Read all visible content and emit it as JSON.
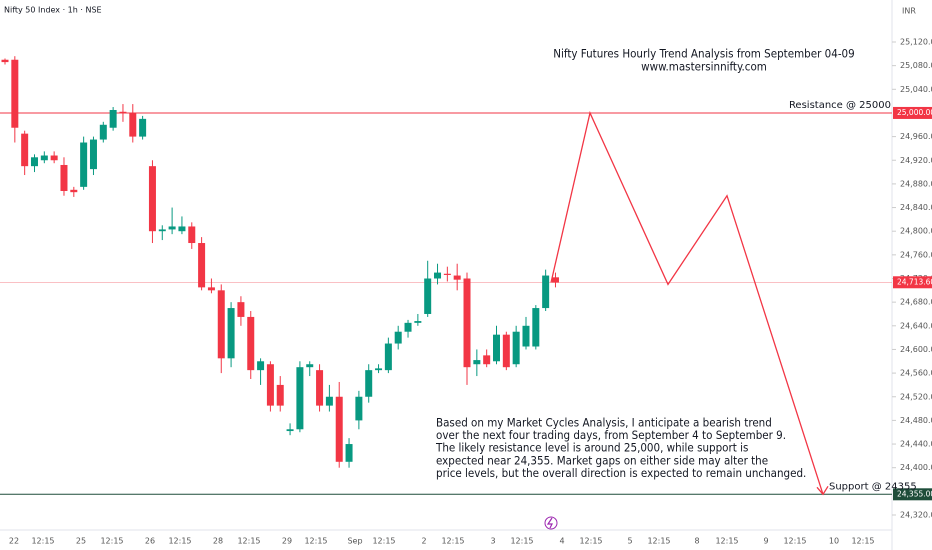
{
  "chart_data": {
    "type": "candlestick",
    "header": "Nifty 50 Index · 1h · NSE",
    "currency": "INR",
    "title": [
      "Nifty Futures Hourly Trend Analysis from September 04-09",
      "www.mastersinnifty.com"
    ],
    "annotation": [
      "Based on my Market Cycles Analysis, I anticipate a bearish trend",
      "over the next four trading days, from September 4 to September 9.",
      "The likely resistance level is around 25,000, while support is",
      "expected near 24,355. Market gaps on either side may alter the",
      "price levels, but the overall direction is expected to remain unchanged."
    ],
    "up_color": "#089981",
    "down_color": "#f23645",
    "open": [
      25090,
      25090,
      24965,
      24910,
      24920,
      24928,
      24912,
      24870,
      24875,
      24905,
      24955,
      24975,
      25002,
      25000,
      24960,
      24910,
      24800,
      24803,
      24800,
      24808,
      24780,
      24705,
      24700,
      24585,
      24680,
      24655,
      24565,
      24575,
      24540,
      24462,
      24465,
      24570,
      24565,
      24505,
      24520,
      24410,
      24480,
      24520,
      24565,
      24565,
      24610,
      24630,
      24645,
      24660,
      24720,
      24728,
      24725,
      24720,
      24575,
      24590,
      24580,
      24625,
      24575,
      24605,
      24605,
      24670,
      24722
    ],
    "high": [
      25092,
      25096,
      24970,
      24930,
      24935,
      24935,
      24925,
      24875,
      24960,
      24960,
      24985,
      25010,
      25015,
      25015,
      24995,
      24920,
      24810,
      24840,
      24825,
      24815,
      24790,
      24720,
      24710,
      24680,
      24690,
      24665,
      24585,
      24580,
      24555,
      24475,
      24580,
      24580,
      24575,
      24540,
      24545,
      24450,
      24530,
      24575,
      24575,
      24620,
      24640,
      24650,
      24660,
      24750,
      24745,
      24740,
      24745,
      24730,
      24600,
      24600,
      24640,
      24630,
      24640,
      24655,
      24675,
      24735,
      24730
    ],
    "low": [
      25082,
      24950,
      24895,
      24900,
      24915,
      24915,
      24860,
      24858,
      24870,
      24895,
      24950,
      24970,
      24985,
      24950,
      24955,
      24780,
      24785,
      24795,
      24795,
      24770,
      24700,
      24695,
      24560,
      24570,
      24640,
      24550,
      24540,
      24495,
      24495,
      24455,
      24460,
      24555,
      24495,
      24495,
      24400,
      24400,
      24465,
      24510,
      24560,
      24560,
      24600,
      24620,
      24640,
      24655,
      24710,
      24715,
      24700,
      24540,
      24555,
      24570,
      24575,
      24565,
      24570,
      24600,
      24600,
      24665,
      24705
    ],
    "close": [
      25086,
      24975,
      24910,
      24925,
      24928,
      24920,
      24868,
      24866,
      24950,
      24955,
      24980,
      25005,
      25000,
      24960,
      24990,
      24800,
      24803,
      24808,
      24808,
      24780,
      24705,
      24700,
      24585,
      24670,
      24655,
      24565,
      24580,
      24505,
      24505,
      24465,
      24570,
      24575,
      24505,
      24520,
      24410,
      24440,
      24520,
      24565,
      24568,
      24610,
      24630,
      24645,
      24648,
      24720,
      24730,
      24726,
      24718,
      24570,
      24582,
      24575,
      24625,
      24570,
      24630,
      24640,
      24670,
      24725,
      24713
    ],
    "x_labels": [
      "22",
      "12:15",
      "25",
      "12:15",
      "26",
      "12:15",
      "28",
      "12:15",
      "29",
      "12:15",
      "Sep",
      "12:15",
      "2",
      "12:15",
      "3",
      "12:15",
      "4",
      "12:15",
      "5",
      "12:15",
      "8",
      "12:15",
      "9",
      "12:15",
      "10",
      "12:15"
    ],
    "ylim": [
      24320,
      25120
    ],
    "yticks": [
      {
        "value": 25120,
        "label": "25,120.00"
      },
      {
        "value": 25080,
        "label": "25,080.00"
      },
      {
        "value": 25040,
        "label": "25,040.00"
      },
      {
        "value": 24960,
        "label": "24,960.00"
      },
      {
        "value": 24920,
        "label": "24,920.00"
      },
      {
        "value": 24880,
        "label": "24,880.00"
      },
      {
        "value": 24840,
        "label": "24,840.00"
      },
      {
        "value": 24800,
        "label": "24,800.00"
      },
      {
        "value": 24760,
        "label": "24,760.00"
      },
      {
        "value": 24720,
        "label": "24,720.00"
      },
      {
        "value": 24680,
        "label": "24,680.00"
      },
      {
        "value": 24640,
        "label": "24,640.00"
      },
      {
        "value": 24600,
        "label": "24,600.00"
      },
      {
        "value": 24560,
        "label": "24,560.00"
      },
      {
        "value": 24520,
        "label": "24,520.00"
      },
      {
        "value": 24480,
        "label": "24,480.00"
      },
      {
        "value": 24440,
        "label": "24,440.00"
      },
      {
        "value": 24400,
        "label": "24,400.00"
      },
      {
        "value": 24320,
        "label": "24,320.00"
      }
    ],
    "levels": [
      {
        "name": "Resistance @ 25000",
        "value": 25000,
        "label": "25,000.00",
        "color": "#f23645"
      },
      {
        "value": 24713.6,
        "label": "24,713.60",
        "color": "#f23645"
      },
      {
        "name": "Support @ 24355",
        "value": 24355,
        "label": "24,355.00",
        "color": "#1e4d3a"
      }
    ],
    "projection": {
      "color": "#f23645",
      "values": [
        24713,
        25000,
        24710,
        24860,
        24355
      ]
    }
  }
}
